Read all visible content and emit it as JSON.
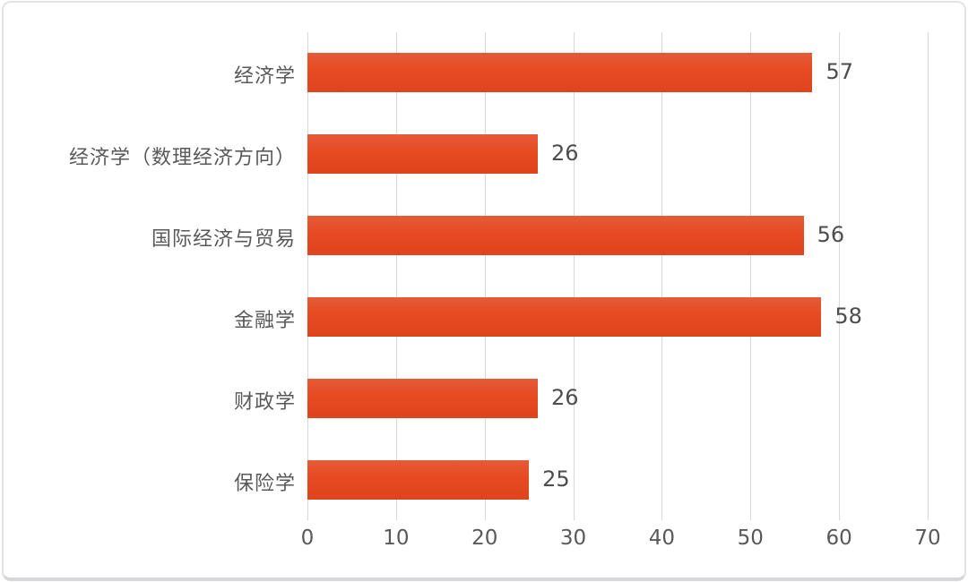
{
  "chart_data": {
    "type": "bar",
    "orientation": "horizontal",
    "title": "",
    "xlabel": "",
    "ylabel": "",
    "categories": [
      "经济学",
      "经济学（数理经济方向）",
      "国际经济与贸易",
      "金融学",
      "财政学",
      "保险学"
    ],
    "values": [
      57,
      26,
      56,
      58,
      26,
      25
    ],
    "data_labels": [
      "57",
      "26",
      "56",
      "58",
      "26",
      "25"
    ],
    "x_ticks": [
      "0",
      "10",
      "20",
      "30",
      "40",
      "50",
      "60",
      "70"
    ],
    "x_tick_values": [
      0,
      10,
      20,
      30,
      40,
      50,
      60,
      70
    ],
    "xlim": [
      0,
      70
    ],
    "grid": "vertical-only",
    "legend": "none",
    "colors": {
      "bar_top": "#e55b38",
      "bar_mid": "#e74a21",
      "bar_bottom": "#de441d",
      "gridline": "#d9d9d9",
      "category_label": "#595959",
      "value_label": "#4d4d4d",
      "tick_label": "#595959",
      "card_border": "#e3e3e6",
      "background": "#ffffff"
    }
  }
}
